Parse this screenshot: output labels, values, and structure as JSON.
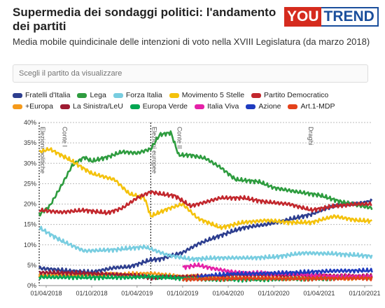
{
  "header": {
    "title": "Supermedia dei sondaggi politici: l'andamento dei partiti",
    "subtitle": "Media mobile quindicinale delle intenzioni di voto nella XVIII Legislatura (da marzo 2018)",
    "logo_you": "YOU",
    "logo_trend": "TREND"
  },
  "search": {
    "placeholder": "Scegli il partito da visualizzare"
  },
  "colors": {
    "fdi": "#2d3e8f",
    "lega": "#2e9c3f",
    "fi": "#78cde0",
    "m5s": "#f4c20d",
    "pd": "#c2272d",
    "europa": "#f59a1b",
    "leu": "#9e1b32",
    "europa_verde": "#00a651",
    "iv": "#e521a8",
    "azione": "#1e3bbf",
    "art1": "#e4411b"
  },
  "chart_data": {
    "type": "line",
    "x_axis": {
      "ticks": [
        "01/04/2018",
        "01/10/2018",
        "01/04/2019",
        "01/10/2019",
        "01/04/2020",
        "01/10/2020",
        "01/04/2021",
        "01/10/2021"
      ],
      "range": [
        "2018-03-04",
        "2021-11-01"
      ]
    },
    "y_axis": {
      "ticks": [
        "0%",
        "5%",
        "10%",
        "15%",
        "20%",
        "25%",
        "30%",
        "35%",
        "40%"
      ],
      "range": [
        0,
        40
      ],
      "grid": "dotted"
    },
    "annotations": [
      {
        "label": "Elezioni politiche",
        "date": "2018-03-04",
        "line": "dotted"
      },
      {
        "label": "Conte I",
        "date": "2018-06-01"
      },
      {
        "label": "Elezioni europee",
        "date": "2019-05-26",
        "line": "dotted"
      },
      {
        "label": "Conte II",
        "date": "2019-09-05"
      },
      {
        "label": "Draghi",
        "date": "2021-02-13"
      }
    ],
    "series": [
      {
        "key": "fdi",
        "name": "Fratelli d'Italia",
        "color": "#2d3e8f",
        "points": [
          [
            "2018-03-04",
            4.3
          ],
          [
            "2018-07-01",
            3.6
          ],
          [
            "2018-10-01",
            3.3
          ],
          [
            "2019-01-01",
            4.4
          ],
          [
            "2019-03-01",
            4.6
          ],
          [
            "2019-05-26",
            6.3
          ],
          [
            "2019-07-01",
            6.5
          ],
          [
            "2019-10-01",
            8.1
          ],
          [
            "2019-12-01",
            10.2
          ],
          [
            "2020-03-01",
            12.3
          ],
          [
            "2020-06-01",
            14.2
          ],
          [
            "2020-09-01",
            15.0
          ],
          [
            "2020-12-01",
            16.2
          ],
          [
            "2021-03-01",
            17.5
          ],
          [
            "2021-05-01",
            19.0
          ],
          [
            "2021-07-01",
            20.0
          ],
          [
            "2021-09-01",
            20.0
          ],
          [
            "2021-11-01",
            20.8
          ]
        ]
      },
      {
        "key": "lega",
        "name": "Lega",
        "color": "#2e9c3f",
        "points": [
          [
            "2018-03-04",
            17.4
          ],
          [
            "2018-04-15",
            19.5
          ],
          [
            "2018-06-01",
            24.5
          ],
          [
            "2018-07-15",
            29.5
          ],
          [
            "2018-09-01",
            31.5
          ],
          [
            "2018-10-01",
            30.5
          ],
          [
            "2018-12-01",
            31.5
          ],
          [
            "2019-02-01",
            32.8
          ],
          [
            "2019-04-01",
            32.5
          ],
          [
            "2019-05-26",
            33.5
          ],
          [
            "2019-07-01",
            37.0
          ],
          [
            "2019-08-15",
            37.5
          ],
          [
            "2019-09-15",
            32.0
          ],
          [
            "2019-11-01",
            32.0
          ],
          [
            "2020-01-01",
            31.2
          ],
          [
            "2020-03-01",
            29.0
          ],
          [
            "2020-05-01",
            26.0
          ],
          [
            "2020-08-01",
            25.5
          ],
          [
            "2020-10-01",
            24.0
          ],
          [
            "2021-01-01",
            23.0
          ],
          [
            "2021-04-01",
            22.2
          ],
          [
            "2021-07-01",
            20.5
          ],
          [
            "2021-11-01",
            19.0
          ]
        ]
      },
      {
        "key": "fi",
        "name": "Forza Italia",
        "color": "#78cde0",
        "points": [
          [
            "2018-03-04",
            14.2
          ],
          [
            "2018-06-01",
            11.0
          ],
          [
            "2018-09-01",
            8.5
          ],
          [
            "2019-01-01",
            8.8
          ],
          [
            "2019-05-01",
            9.5
          ],
          [
            "2019-05-26",
            9.0
          ],
          [
            "2019-08-01",
            7.5
          ],
          [
            "2019-11-01",
            6.5
          ],
          [
            "2020-03-01",
            6.8
          ],
          [
            "2020-07-01",
            6.8
          ],
          [
            "2020-10-01",
            7.0
          ],
          [
            "2021-02-01",
            8.0
          ],
          [
            "2021-06-01",
            7.8
          ],
          [
            "2021-11-01",
            7.2
          ]
        ]
      },
      {
        "key": "m5s",
        "name": "Movimento 5 Stelle",
        "color": "#f4c20d",
        "points": [
          [
            "2018-03-04",
            32.8
          ],
          [
            "2018-04-15",
            33.5
          ],
          [
            "2018-07-01",
            31.0
          ],
          [
            "2018-10-01",
            27.5
          ],
          [
            "2019-01-01",
            26.0
          ],
          [
            "2019-03-01",
            22.5
          ],
          [
            "2019-05-01",
            21.5
          ],
          [
            "2019-05-26",
            17.0
          ],
          [
            "2019-08-01",
            18.8
          ],
          [
            "2019-10-01",
            20.0
          ],
          [
            "2019-12-01",
            16.5
          ],
          [
            "2020-03-01",
            14.2
          ],
          [
            "2020-06-01",
            15.5
          ],
          [
            "2020-09-01",
            16.0
          ],
          [
            "2020-12-01",
            15.5
          ],
          [
            "2021-03-01",
            15.5
          ],
          [
            "2021-06-01",
            17.0
          ],
          [
            "2021-09-01",
            16.0
          ],
          [
            "2021-11-01",
            15.8
          ]
        ]
      },
      {
        "key": "pd",
        "name": "Partito Democratico",
        "color": "#c2272d",
        "points": [
          [
            "2018-03-04",
            18.5
          ],
          [
            "2018-06-01",
            18.0
          ],
          [
            "2018-09-01",
            18.5
          ],
          [
            "2018-12-01",
            17.8
          ],
          [
            "2019-02-01",
            19.0
          ],
          [
            "2019-04-01",
            21.5
          ],
          [
            "2019-05-26",
            23.0
          ],
          [
            "2019-07-01",
            22.5
          ],
          [
            "2019-09-01",
            22.0
          ],
          [
            "2019-11-01",
            19.5
          ],
          [
            "2020-01-01",
            20.5
          ],
          [
            "2020-03-01",
            21.5
          ],
          [
            "2020-06-01",
            21.5
          ],
          [
            "2020-09-01",
            20.5
          ],
          [
            "2020-12-01",
            20.0
          ],
          [
            "2021-03-01",
            18.5
          ],
          [
            "2021-06-01",
            19.5
          ],
          [
            "2021-09-01",
            20.0
          ],
          [
            "2021-11-01",
            20.0
          ]
        ]
      },
      {
        "key": "europa",
        "name": "+Europa",
        "color": "#f59a1b",
        "points": [
          [
            "2018-03-04",
            2.6
          ],
          [
            "2018-09-01",
            2.6
          ],
          [
            "2019-03-01",
            2.8
          ],
          [
            "2019-05-26",
            3.0
          ],
          [
            "2019-10-01",
            2.2
          ],
          [
            "2020-06-01",
            1.8
          ],
          [
            "2021-01-01",
            1.8
          ],
          [
            "2021-11-01",
            1.9
          ]
        ]
      },
      {
        "key": "leu",
        "name": "La Sinistra/LeU",
        "color": "#9e1b32",
        "points": [
          [
            "2018-03-04",
            3.2
          ],
          [
            "2018-09-01",
            3.0
          ],
          [
            "2019-03-01",
            2.6
          ],
          [
            "2019-05-26",
            2.0
          ],
          [
            "2019-10-01",
            2.2
          ],
          [
            "2020-06-01",
            2.6
          ],
          [
            "2021-01-01",
            2.5
          ],
          [
            "2021-11-01",
            2.3
          ]
        ]
      },
      {
        "key": "europa_verde",
        "name": "Europa Verde",
        "color": "#00a651",
        "points": [
          [
            "2018-03-04",
            2.1
          ],
          [
            "2018-09-01",
            2.0
          ],
          [
            "2019-03-01",
            2.0
          ],
          [
            "2019-05-26",
            2.2
          ],
          [
            "2020-01-01",
            1.5
          ],
          [
            "2020-09-01",
            1.5
          ],
          [
            "2021-05-01",
            1.8
          ],
          [
            "2021-11-01",
            2.0
          ]
        ]
      },
      {
        "key": "iv",
        "name": "Italia Viva",
        "color": "#e521a8",
        "points": [
          [
            "2019-10-01",
            4.5
          ],
          [
            "2019-12-01",
            5.0
          ],
          [
            "2020-02-01",
            4.2
          ],
          [
            "2020-05-01",
            3.2
          ],
          [
            "2020-09-01",
            3.0
          ],
          [
            "2021-01-01",
            2.8
          ],
          [
            "2021-06-01",
            2.2
          ],
          [
            "2021-11-01",
            2.3
          ]
        ]
      },
      {
        "key": "azione",
        "name": "Azione",
        "color": "#1e3bbf",
        "points": [
          [
            "2019-12-01",
            2.2
          ],
          [
            "2020-04-01",
            2.8
          ],
          [
            "2020-09-01",
            3.0
          ],
          [
            "2021-01-01",
            3.2
          ],
          [
            "2021-06-01",
            3.6
          ],
          [
            "2021-11-01",
            3.7
          ]
        ]
      },
      {
        "key": "art1",
        "name": "Art.1-MDP",
        "color": "#e4411b",
        "points": [
          [
            "2019-10-01",
            1.5
          ],
          [
            "2020-06-01",
            1.8
          ],
          [
            "2021-01-01",
            1.7
          ],
          [
            "2021-11-01",
            1.8
          ]
        ]
      }
    ]
  }
}
